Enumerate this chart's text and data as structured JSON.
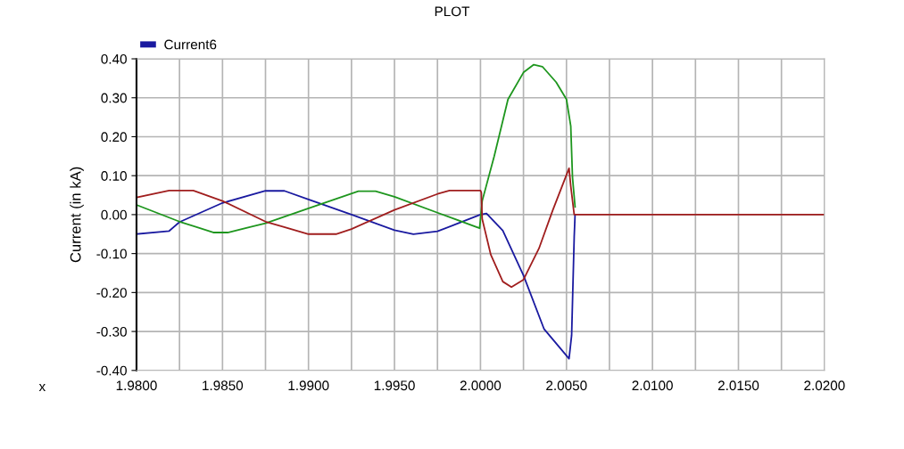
{
  "chart_data": {
    "type": "line",
    "title": "PLOT",
    "xlabel": "x",
    "ylabel": "Current (in kA)",
    "xlim": [
      1.98,
      2.02
    ],
    "xticks": [
      {
        "value": 1.98,
        "label": "1.9800"
      },
      {
        "value": 1.9825,
        "label": null
      },
      {
        "value": 1.985,
        "label": "1.9850"
      },
      {
        "value": 1.9875,
        "label": null
      },
      {
        "value": 1.99,
        "label": "1.9900"
      },
      {
        "value": 1.9925,
        "label": null
      },
      {
        "value": 1.995,
        "label": "1.9950"
      },
      {
        "value": 1.9975,
        "label": null
      },
      {
        "value": 2.0,
        "label": "2.0000"
      },
      {
        "value": 2.0025,
        "label": null
      },
      {
        "value": 2.005,
        "label": "2.0050"
      },
      {
        "value": 2.0075,
        "label": null
      },
      {
        "value": 2.01,
        "label": "2.0100"
      },
      {
        "value": 2.0125,
        "label": null
      },
      {
        "value": 2.015,
        "label": "2.0150"
      },
      {
        "value": 2.0175,
        "label": null
      },
      {
        "value": 2.02,
        "label": "2.0200"
      }
    ],
    "ylim": [
      -0.4,
      0.4
    ],
    "yticks": [
      {
        "value": -0.4,
        "label": "-0.40"
      },
      {
        "value": -0.3,
        "label": "-0.30"
      },
      {
        "value": -0.2,
        "label": "-0.20"
      },
      {
        "value": -0.1,
        "label": "-0.10"
      },
      {
        "value": 0,
        "label": "0.00"
      },
      {
        "value": 0.1,
        "label": "0.10"
      },
      {
        "value": 0.2,
        "label": "0.20"
      },
      {
        "value": 0.3,
        "label": "0.30"
      },
      {
        "value": 0.4,
        "label": "0.40"
      }
    ],
    "grid": true,
    "legend": "top left",
    "line_style": "solid",
    "marker": "none",
    "series": [
      {
        "name": "Current6",
        "color": "#1a1aa0",
        "x": [
          1.98,
          1.9819,
          1.9825,
          1.985,
          1.9875,
          1.9886,
          1.99,
          1.9925,
          1.995,
          1.9961,
          1.9975,
          2.0,
          2.00035,
          2.0013,
          2.0025,
          2.0037,
          2.00515,
          2.0053,
          2.00545,
          2.0055
        ],
        "values": [
          -0.05,
          -0.042,
          -0.019,
          0.03,
          0.061,
          0.061,
          0.039,
          0.0,
          -0.04,
          -0.05,
          -0.043,
          0.0,
          0.003,
          -0.041,
          -0.156,
          -0.294,
          -0.37,
          -0.31,
          -0.057,
          0.0
        ]
      },
      {
        "color": "#1e961e",
        "x": [
          1.98,
          1.9825,
          1.9845,
          1.9853,
          1.9875,
          1.99,
          1.9929,
          1.9939,
          1.995,
          1.9975,
          1.99995,
          2.0001,
          2.0008,
          2.0016,
          2.0025,
          2.0031,
          2.0036,
          2.0044,
          2.005,
          2.00525,
          2.00535,
          2.0055
        ],
        "values": [
          0.025,
          -0.018,
          -0.046,
          -0.046,
          -0.022,
          0.016,
          0.06,
          0.06,
          0.046,
          0.005,
          -0.035,
          0.035,
          0.15,
          0.296,
          0.365,
          0.385,
          0.38,
          0.34,
          0.296,
          0.227,
          0.096,
          0.02
        ]
      },
      {
        "color": "#a01e1e",
        "x": [
          1.98,
          1.9819,
          1.9833,
          1.985,
          1.9875,
          1.99,
          1.9916,
          1.9925,
          1.995,
          1.9975,
          1.9982,
          2.0,
          2.00005,
          2.0001,
          2.0006,
          2.0013,
          2.0018,
          2.0025,
          2.0034,
          2.0042,
          2.00515,
          2.00525,
          2.00545,
          2.02
        ],
        "values": [
          0.044,
          0.062,
          0.062,
          0.035,
          -0.018,
          -0.05,
          -0.05,
          -0.037,
          0.012,
          0.053,
          0.062,
          0.062,
          0.057,
          -0.011,
          -0.103,
          -0.172,
          -0.186,
          -0.167,
          -0.087,
          0.011,
          0.119,
          0.073,
          0.0,
          0.0
        ]
      }
    ]
  }
}
